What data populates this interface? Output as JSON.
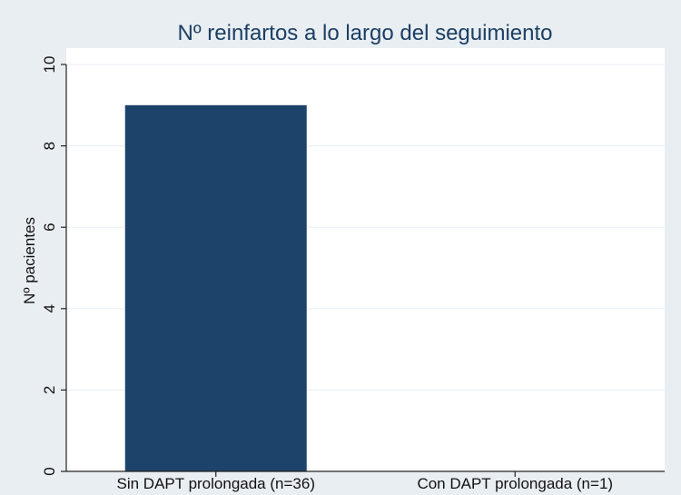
{
  "chart_data": {
    "type": "bar",
    "title": "Nº reinfartos a lo largo del seguimiento",
    "xlabel": "",
    "ylabel": "Nº pacientes",
    "categories": [
      "Sin DAPT prolongada (n=36)",
      "Con DAPT prolongada (n=1)"
    ],
    "values": [
      9,
      0
    ],
    "ylim": [
      0,
      10
    ],
    "yticks": [
      "0",
      "2",
      "4",
      "6",
      "8",
      "10"
    ],
    "grid": true,
    "colors": {
      "bar": "#1c436a",
      "plot_background": "#ffffff",
      "page_background": "#e9eef3",
      "title": "#1b3f63",
      "gridline": "#e8eef4"
    }
  }
}
